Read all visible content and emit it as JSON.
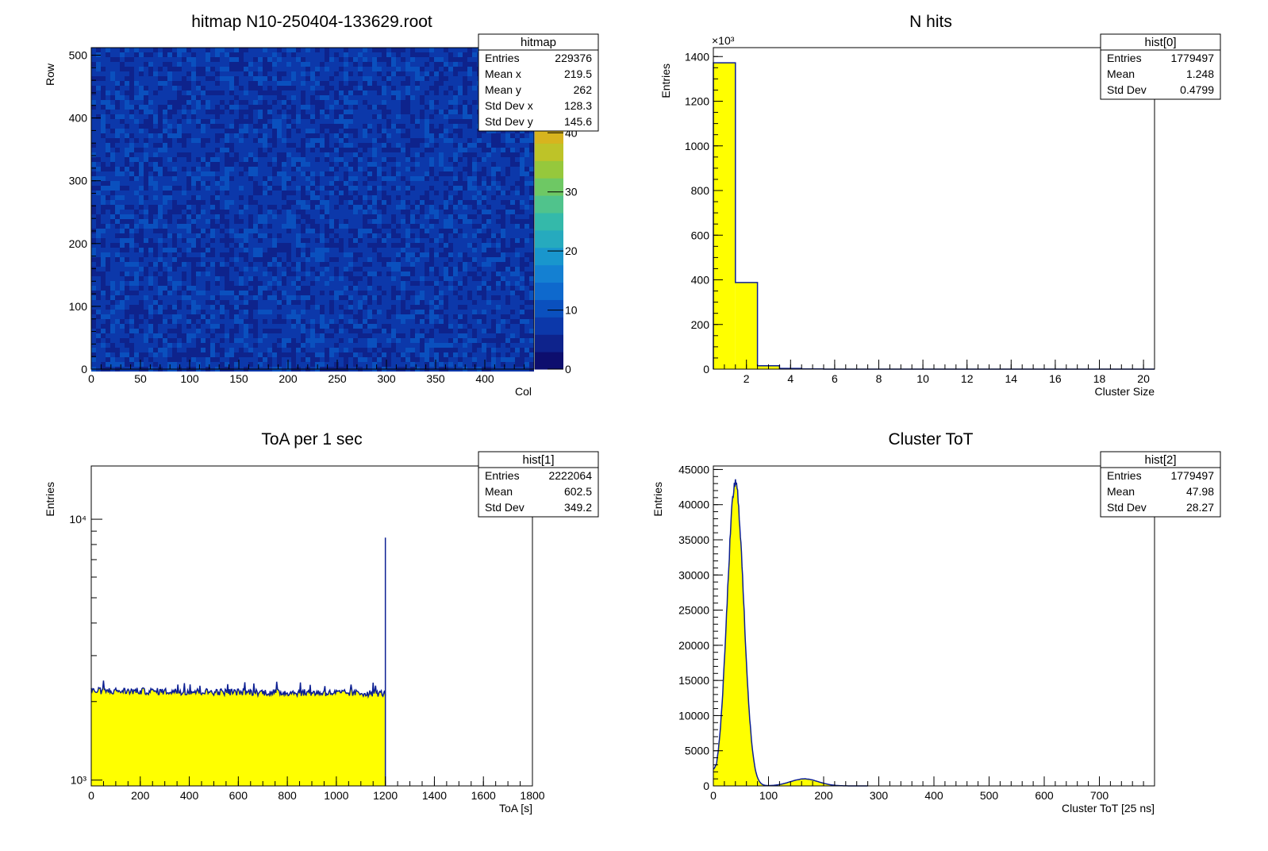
{
  "window": {
    "title": ""
  },
  "colors": {
    "fill": "#ffff00",
    "line": "#0c1f93",
    "frame": "#000000"
  },
  "chart_data": [
    {
      "id": "hitmap",
      "type": "heatmap",
      "title": "hitmap N10-250404-133629.root",
      "xlabel": "Col",
      "ylabel": "Row",
      "xlim": [
        0,
        450
      ],
      "ylim": [
        0,
        512
      ],
      "xticks": [
        0,
        50,
        100,
        150,
        200,
        250,
        300,
        350,
        400
      ],
      "yticks": [
        0,
        100,
        200,
        300,
        400,
        500
      ],
      "zlim": [
        0,
        50
      ],
      "zticks": [
        0,
        10,
        20,
        30,
        40
      ],
      "z_typical": 7,
      "stats": {
        "name": "hitmap",
        "rows": [
          [
            "Entries",
            "229376"
          ],
          [
            "Mean x",
            "219.5"
          ],
          [
            "Mean y",
            "262"
          ],
          [
            "Std Dev x",
            "128.3"
          ],
          [
            "Std Dev y",
            "145.6"
          ]
        ]
      }
    },
    {
      "id": "nhits",
      "type": "bar",
      "title": "N hits",
      "xlabel": "Cluster Size",
      "ylabel": "Entries",
      "exponent_label": "×10³",
      "xlim": [
        0.5,
        20.5
      ],
      "ylim": [
        0,
        1440
      ],
      "xticks": [
        2,
        4,
        6,
        8,
        10,
        12,
        14,
        16,
        18,
        20
      ],
      "yticks": [
        0,
        200,
        400,
        600,
        800,
        1000,
        1200,
        1400
      ],
      "bins": [
        {
          "x0": 0.5,
          "x1": 1.5,
          "y": 1372
        },
        {
          "x0": 1.5,
          "x1": 2.5,
          "y": 388
        },
        {
          "x0": 2.5,
          "x1": 3.5,
          "y": 15
        },
        {
          "x0": 3.5,
          "x1": 4.5,
          "y": 3
        },
        {
          "x0": 4.5,
          "x1": 5.5,
          "y": 1
        }
      ],
      "stats": {
        "name": "hist[0]",
        "rows": [
          [
            "Entries",
            "1779497"
          ],
          [
            "Mean",
            "1.248"
          ],
          [
            "Std Dev",
            "0.4799"
          ]
        ]
      }
    },
    {
      "id": "toa",
      "type": "area",
      "title": "ToA per 1 sec",
      "xlabel": "ToA [s]",
      "ylabel": "Entries",
      "yscale": "log",
      "xlim": [
        0,
        1800
      ],
      "ylim": [
        950,
        16000
      ],
      "xticks": [
        0,
        200,
        400,
        600,
        800,
        1000,
        1200,
        1400,
        1600,
        1800
      ],
      "ymajor": [
        {
          "value": 1000,
          "label": "10³"
        },
        {
          "value": 10000,
          "label": "10⁴"
        }
      ],
      "level_start": 2200,
      "level_end": 2150,
      "spike": {
        "x": 1200,
        "y": 8500
      },
      "x_end": 1200,
      "stats": {
        "name": "hist[1]",
        "rows": [
          [
            "Entries",
            "2222064"
          ],
          [
            "Mean",
            "602.5"
          ],
          [
            "Std Dev",
            "349.2"
          ]
        ]
      }
    },
    {
      "id": "tot",
      "type": "area",
      "title": "Cluster ToT",
      "xlabel": "Cluster ToT [25 ns]",
      "ylabel": "Entries",
      "xlim": [
        0,
        800
      ],
      "ylim": [
        0,
        45500
      ],
      "xticks": [
        0,
        100,
        200,
        300,
        400,
        500,
        600,
        700
      ],
      "yticks": [
        0,
        5000,
        10000,
        15000,
        20000,
        25000,
        30000,
        35000,
        40000,
        45000
      ],
      "peaks": [
        {
          "mean": 40,
          "sigma": 15,
          "amp": 43000
        },
        {
          "mean": 165,
          "sigma": 25,
          "amp": 1000
        }
      ],
      "baseline": 1800,
      "stats": {
        "name": "hist[2]",
        "rows": [
          [
            "Entries",
            "1779497"
          ],
          [
            "Mean",
            "47.98"
          ],
          [
            "Std Dev",
            "28.27"
          ]
        ]
      }
    }
  ]
}
